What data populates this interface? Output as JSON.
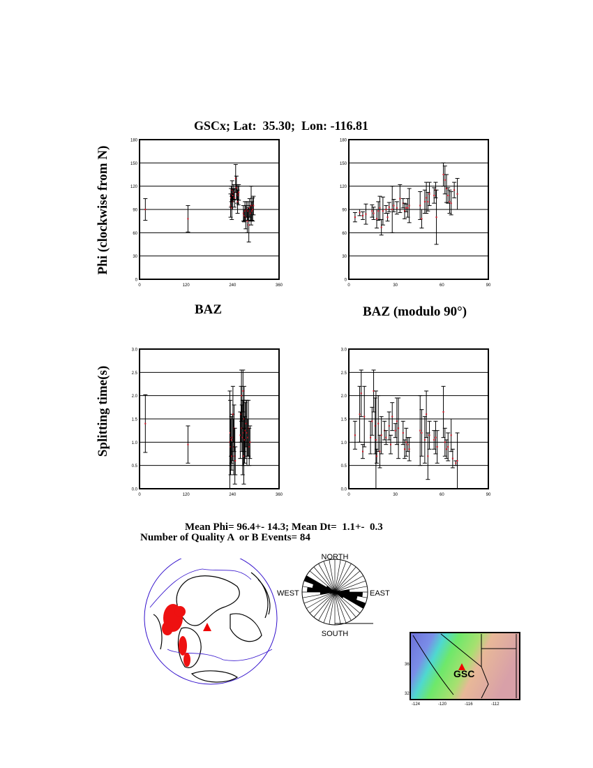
{
  "title": "GSCx; Lat:  35.30;  Lon: -116.81",
  "ylabel_phi": "Phi (clockwise from N)",
  "ylabel_dt": "Splitting time(s)",
  "xlabel_baz": "BAZ",
  "xlabel_baz_mod": "BAZ (modulo 90°)",
  "stats": {
    "line1": "Mean Phi= 96.4+- 14.3; Mean Dt=  1.1+-  0.3",
    "line2": "Number of Quality A  or B Events= 84"
  },
  "rose": {
    "north": "NORTH",
    "south": "SOUTH",
    "east": "EAST",
    "west": "WEST",
    "bin_deg": 10,
    "counts_0_180": [
      0,
      0,
      0,
      0,
      0,
      0,
      1,
      3,
      9,
      17,
      14,
      20,
      6,
      2,
      0,
      0,
      0,
      0
    ]
  },
  "map": {
    "station": "GSC",
    "lat_ticks": [
      "36",
      "32"
    ],
    "lon_ticks": [
      "-124",
      "-120",
      "-116",
      "-112"
    ]
  },
  "colors": {
    "error_bar": "#000000",
    "point": "#cc1122",
    "grid": "#000000",
    "globe_outline": "#3311cc",
    "events": "#ee1111",
    "station": "#ee0000"
  },
  "chart_data": [
    {
      "type": "scatter",
      "id": "phi_baz",
      "xlim": [
        0,
        360
      ],
      "ylim": [
        0,
        180
      ],
      "xticks": [
        "0",
        "120",
        "240",
        "360"
      ],
      "yticks": [
        "0",
        "30",
        "60",
        "90",
        "120",
        "150",
        "180"
      ],
      "grid": "horizontal",
      "points": [
        [
          15,
          90,
          14
        ],
        [
          125,
          78,
          17
        ],
        [
          235,
          95,
          15
        ],
        [
          236,
          105,
          12
        ],
        [
          237,
          110,
          10
        ],
        [
          238,
          92,
          15
        ],
        [
          239,
          115,
          12
        ],
        [
          240,
          100,
          10
        ],
        [
          241,
          108,
          8
        ],
        [
          243,
          112,
          10
        ],
        [
          245,
          105,
          12
        ],
        [
          248,
          130,
          18
        ],
        [
          250,
          118,
          15
        ],
        [
          252,
          110,
          12
        ],
        [
          253,
          100,
          15
        ],
        [
          255,
          108,
          12
        ],
        [
          256,
          112,
          10
        ],
        [
          268,
          85,
          10
        ],
        [
          270,
          82,
          8
        ],
        [
          272,
          88,
          12
        ],
        [
          274,
          80,
          15
        ],
        [
          276,
          90,
          10
        ],
        [
          278,
          75,
          15
        ],
        [
          280,
          88,
          12
        ],
        [
          282,
          70,
          22
        ],
        [
          284,
          92,
          12
        ],
        [
          286,
          85,
          10
        ],
        [
          288,
          95,
          25
        ],
        [
          290,
          88,
          12
        ],
        [
          292,
          90,
          15
        ],
        [
          294,
          95,
          12
        ]
      ]
    },
    {
      "type": "scatter",
      "id": "phi_baz_mod90",
      "xlim": [
        0,
        90
      ],
      "ylim": [
        0,
        180
      ],
      "xticks": [
        "0",
        "30",
        "60",
        "90"
      ],
      "yticks": [
        "0",
        "30",
        "60",
        "90",
        "120",
        "150",
        "180"
      ],
      "grid": "horizontal",
      "points": [
        [
          4,
          80,
          6
        ],
        [
          7,
          86,
          4
        ],
        [
          9,
          82,
          5
        ],
        [
          11,
          84,
          13
        ],
        [
          15,
          88,
          8
        ],
        [
          16,
          85,
          8
        ],
        [
          18,
          78,
          12
        ],
        [
          19,
          88,
          12
        ],
        [
          20,
          92,
          15
        ],
        [
          21,
          67,
          10
        ],
        [
          22,
          88,
          18
        ],
        [
          24,
          90,
          5
        ],
        [
          25,
          80,
          5
        ],
        [
          26,
          93,
          6
        ],
        [
          28,
          90,
          30
        ],
        [
          29,
          95,
          8
        ],
        [
          31,
          92,
          8
        ],
        [
          33,
          104,
          18
        ],
        [
          35,
          98,
          6
        ],
        [
          36,
          88,
          10
        ],
        [
          37,
          92,
          5
        ],
        [
          38,
          92,
          12
        ],
        [
          39,
          95,
          22
        ],
        [
          46,
          95,
          18
        ],
        [
          47,
          78,
          12
        ],
        [
          49,
          100,
          15
        ],
        [
          50,
          105,
          20
        ],
        [
          51,
          100,
          12
        ],
        [
          52,
          110,
          15
        ],
        [
          55,
          108,
          10
        ],
        [
          56,
          115,
          10
        ],
        [
          56.5,
          80,
          35
        ],
        [
          61,
          135,
          15
        ],
        [
          62,
          128,
          18
        ],
        [
          63,
          117,
          18
        ],
        [
          64,
          108,
          10
        ],
        [
          65,
          100,
          15
        ],
        [
          66,
          98,
          15
        ],
        [
          68,
          115,
          10
        ],
        [
          70,
          110,
          20
        ]
      ]
    },
    {
      "type": "scatter",
      "id": "dt_baz",
      "xlim": [
        0,
        360
      ],
      "ylim": [
        0,
        3
      ],
      "xticks": [
        "0",
        "120",
        "240",
        "360"
      ],
      "yticks": [
        "0.0",
        "0.5",
        "1.0",
        "1.5",
        "2.0",
        "2.5",
        "3.0"
      ],
      "grid": "horizontal",
      "points": [
        [
          15,
          1.4,
          0.62
        ],
        [
          125,
          0.95,
          0.4
        ],
        [
          233,
          1.0,
          1.1
        ],
        [
          234,
          1.2,
          0.7
        ],
        [
          235,
          0.9,
          0.6
        ],
        [
          236,
          1.1,
          0.4
        ],
        [
          237,
          1.05,
          0.5
        ],
        [
          238,
          0.7,
          0.3
        ],
        [
          240,
          1.1,
          0.5
        ],
        [
          241,
          1.6,
          0.6
        ],
        [
          243,
          0.9,
          0.6
        ],
        [
          244,
          1.3,
          0.5
        ],
        [
          246,
          0.7,
          0.6
        ],
        [
          247,
          0.6,
          0.3
        ],
        [
          260,
          1.15,
          0.5
        ],
        [
          262,
          1.6,
          0.6
        ],
        [
          263,
          2.0,
          0.55
        ],
        [
          264,
          1.3,
          0.5
        ],
        [
          266,
          1.1,
          0.8
        ],
        [
          267,
          2.1,
          0.45
        ],
        [
          268,
          1.2,
          0.7
        ],
        [
          269,
          0.7,
          0.6
        ],
        [
          270,
          1.5,
          0.7
        ],
        [
          271,
          1.05,
          0.5
        ],
        [
          273,
          1.25,
          0.6
        ],
        [
          275,
          1.4,
          0.5
        ],
        [
          277,
          1.2,
          0.7
        ],
        [
          279,
          1.1,
          0.4
        ],
        [
          281,
          1.3,
          0.6
        ],
        [
          283,
          0.9,
          0.4
        ],
        [
          285,
          1.0,
          0.35
        ]
      ]
    },
    {
      "type": "scatter",
      "id": "dt_baz_mod90",
      "xlim": [
        0,
        90
      ],
      "ylim": [
        0,
        3
      ],
      "xticks": [
        "0",
        "30",
        "60",
        "90"
      ],
      "yticks": [
        "0.0",
        "0.5",
        "1.0",
        "1.5",
        "2.0",
        "2.5",
        "3.0"
      ],
      "grid": "horizontal",
      "points": [
        [
          4,
          1.15,
          0.3
        ],
        [
          7,
          1.6,
          0.6
        ],
        [
          8,
          2.05,
          0.5
        ],
        [
          9,
          0.8,
          0.15
        ],
        [
          10,
          1.55,
          0.65
        ],
        [
          14,
          1.1,
          0.35
        ],
        [
          15,
          1.45,
          0.3
        ],
        [
          16,
          2.1,
          0.45
        ],
        [
          17,
          1.35,
          0.6
        ],
        [
          17.5,
          1.05,
          1.05
        ],
        [
          18,
          0.7,
          0.15
        ],
        [
          19,
          1.4,
          0.6
        ],
        [
          20,
          0.8,
          0.35
        ],
        [
          21,
          1.15,
          0.4
        ],
        [
          23,
          1.25,
          0.2
        ],
        [
          24,
          1.1,
          0.15
        ],
        [
          26,
          1.35,
          0.3
        ],
        [
          27,
          0.95,
          0.2
        ],
        [
          28,
          1.55,
          0.3
        ],
        [
          30,
          1.25,
          0.15
        ],
        [
          31,
          1.45,
          0.5
        ],
        [
          32,
          1.3,
          0.65
        ],
        [
          35,
          1.2,
          0.25
        ],
        [
          36,
          0.85,
          0.2
        ],
        [
          37,
          1.0,
          0.3
        ],
        [
          38,
          0.95,
          0.15
        ],
        [
          39,
          0.85,
          0.25
        ],
        [
          46,
          1.25,
          0.75
        ],
        [
          47,
          1.2,
          0.5
        ],
        [
          49,
          1.05,
          0.5
        ],
        [
          50,
          1.6,
          0.5
        ],
        [
          51,
          0.7,
          0.5
        ],
        [
          52,
          1.15,
          0.3
        ],
        [
          55,
          1.05,
          0.2
        ],
        [
          56,
          1.1,
          0.35
        ],
        [
          57,
          0.9,
          0.35
        ],
        [
          61,
          1.65,
          0.55
        ],
        [
          62,
          1.0,
          0.3
        ],
        [
          63,
          0.85,
          0.2
        ],
        [
          64,
          0.9,
          0.3
        ],
        [
          66,
          1.15,
          0.35
        ],
        [
          67,
          0.65,
          0.2
        ],
        [
          69,
          0.55,
          0.05
        ],
        [
          70,
          0.6,
          0.6
        ]
      ]
    }
  ]
}
